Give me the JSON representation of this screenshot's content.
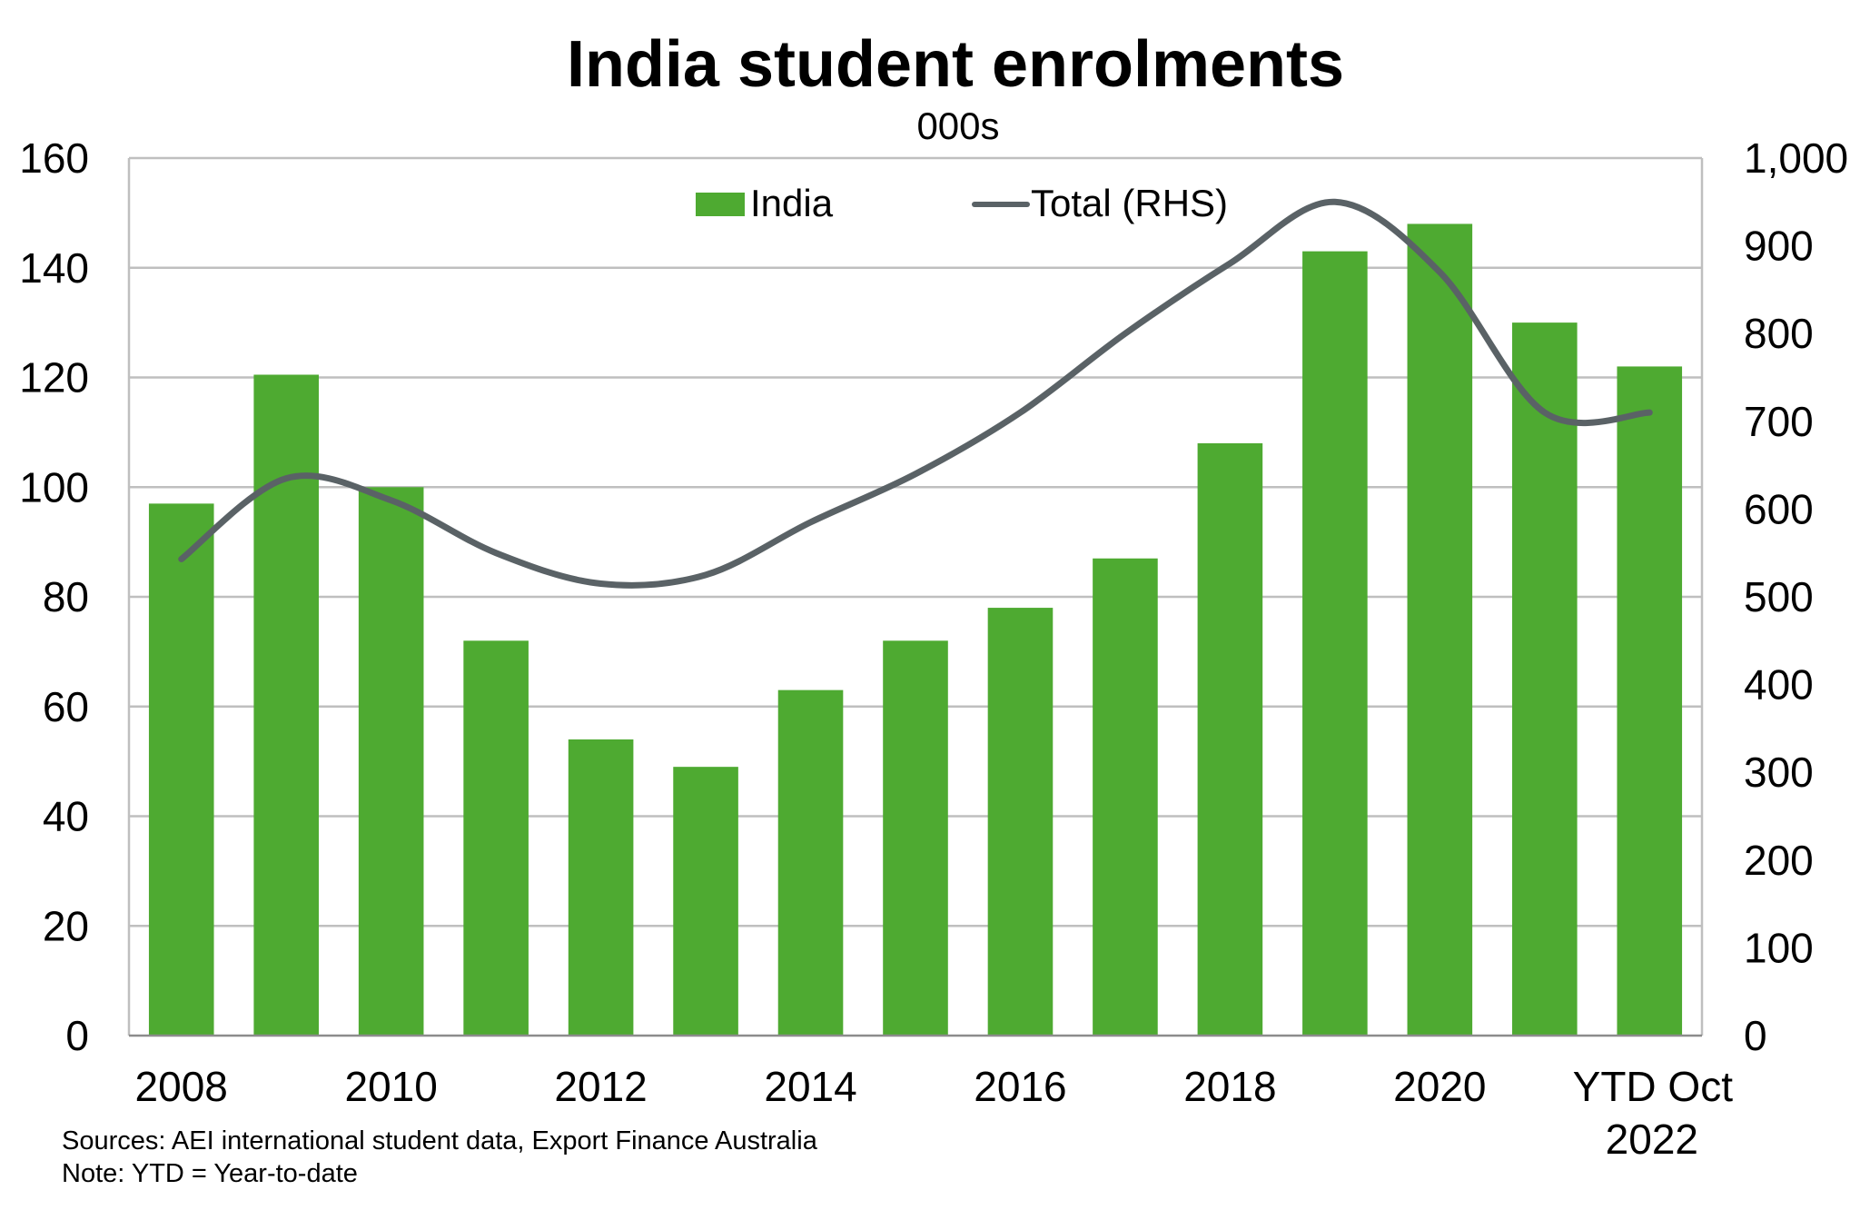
{
  "chart_data": {
    "type": "bar",
    "title": "India student enrolments",
    "subtitle": "000s",
    "categories": [
      "2008",
      "2009",
      "2010",
      "2011",
      "2012",
      "2013",
      "2014",
      "2015",
      "2016",
      "2017",
      "2018",
      "2019",
      "2020",
      "2021",
      "YTD Oct 2022"
    ],
    "x_tick_labels": [
      {
        "category_index": 0,
        "lines": [
          "2008"
        ]
      },
      {
        "category_index": 2,
        "lines": [
          "2010"
        ]
      },
      {
        "category_index": 4,
        "lines": [
          "2012"
        ]
      },
      {
        "category_index": 6,
        "lines": [
          "2014"
        ]
      },
      {
        "category_index": 8,
        "lines": [
          "2016"
        ]
      },
      {
        "category_index": 10,
        "lines": [
          "2018"
        ]
      },
      {
        "category_index": 12,
        "lines": [
          "2020"
        ]
      },
      {
        "category_index": 14,
        "lines": [
          "YTD Oct",
          "2022"
        ]
      }
    ],
    "series": [
      {
        "name": "India",
        "type": "bar",
        "axis": "left",
        "color": "#4EAA31",
        "values": [
          97,
          120.5,
          100,
          72,
          54,
          49,
          63,
          72,
          78,
          87,
          108,
          143,
          148,
          130,
          122
        ]
      },
      {
        "name": "Total (RHS)",
        "type": "line",
        "axis": "right",
        "color": "#5A6266",
        "values": [
          543,
          635,
          610,
          550,
          515,
          525,
          585,
          640,
          710,
          800,
          880,
          950,
          870,
          710,
          710
        ]
      }
    ],
    "y_left": {
      "ylim": [
        0,
        160
      ],
      "ticks": [
        "0",
        "20",
        "40",
        "60",
        "80",
        "100",
        "120",
        "140",
        "160"
      ]
    },
    "y_right": {
      "ylim": [
        0,
        1000
      ],
      "ticks": [
        "0",
        "100",
        "200",
        "300",
        "400",
        "500",
        "600",
        "700",
        "800",
        "900",
        "1,000"
      ]
    },
    "grid": true,
    "legend": {
      "placement": "top-center",
      "items": [
        "India",
        "Total (RHS)"
      ]
    }
  },
  "footnotes": {
    "sources": "Sources: AEI international student data, Export Finance Australia",
    "note": "Note: YTD = Year-to-date"
  }
}
